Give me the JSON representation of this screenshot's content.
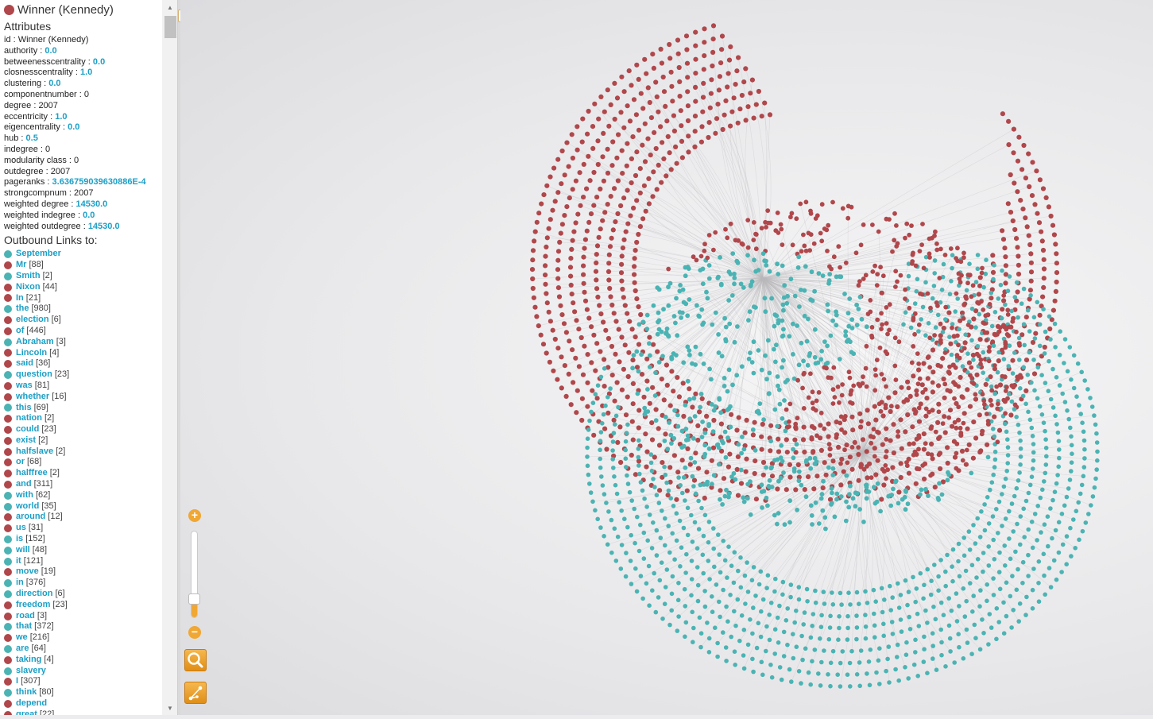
{
  "node": {
    "title": "Winner (Kennedy)",
    "color": "#b0474b"
  },
  "attributes_heading": "Attributes",
  "attributes": [
    {
      "key": "id",
      "value": "Winner (Kennedy)",
      "numeric": false
    },
    {
      "key": "authority",
      "value": "0.0",
      "numeric": true
    },
    {
      "key": "betweenesscentrality",
      "value": "0.0",
      "numeric": true
    },
    {
      "key": "closnesscentrality",
      "value": "1.0",
      "numeric": true
    },
    {
      "key": "clustering",
      "value": "0.0",
      "numeric": true
    },
    {
      "key": "componentnumber",
      "value": "0",
      "numeric": false
    },
    {
      "key": "degree",
      "value": "2007",
      "numeric": false
    },
    {
      "key": "eccentricity",
      "value": "1.0",
      "numeric": true
    },
    {
      "key": "eigencentrality",
      "value": "0.0",
      "numeric": true
    },
    {
      "key": "hub",
      "value": "0.5",
      "numeric": true
    },
    {
      "key": "indegree",
      "value": "0",
      "numeric": false
    },
    {
      "key": "modularity class",
      "value": "0",
      "numeric": false
    },
    {
      "key": "outdegree",
      "value": "2007",
      "numeric": false
    },
    {
      "key": "pageranks",
      "value": "3.636759039630886E-4",
      "numeric": true
    },
    {
      "key": "strongcompnum",
      "value": "2007",
      "numeric": false
    },
    {
      "key": "weighted degree",
      "value": "14530.0",
      "numeric": true
    },
    {
      "key": "weighted indegree",
      "value": "0.0",
      "numeric": true
    },
    {
      "key": "weighted outdegree",
      "value": "14530.0",
      "numeric": true
    }
  ],
  "outbound_heading": "Outbound Links to:",
  "colors": {
    "red": "#b0474b",
    "teal": "#4bb3b3",
    "link": "#1c9fc6",
    "accent": "#f0a733"
  },
  "outbound_links": [
    {
      "name": "September",
      "count": "",
      "color": "teal"
    },
    {
      "name": "Mr",
      "count": "[88]",
      "color": "red"
    },
    {
      "name": "Smith",
      "count": "[2]",
      "color": "teal"
    },
    {
      "name": "Nixon",
      "count": "[44]",
      "color": "red"
    },
    {
      "name": "In",
      "count": "[21]",
      "color": "red"
    },
    {
      "name": "the",
      "count": "[980]",
      "color": "teal"
    },
    {
      "name": "election",
      "count": "[6]",
      "color": "red"
    },
    {
      "name": "of",
      "count": "[446]",
      "color": "red"
    },
    {
      "name": "Abraham",
      "count": "[3]",
      "color": "teal"
    },
    {
      "name": "Lincoln",
      "count": "[4]",
      "color": "red"
    },
    {
      "name": "said",
      "count": "[36]",
      "color": "red"
    },
    {
      "name": "question",
      "count": "[23]",
      "color": "teal"
    },
    {
      "name": "was",
      "count": "[81]",
      "color": "red"
    },
    {
      "name": "whether",
      "count": "[16]",
      "color": "red"
    },
    {
      "name": "this",
      "count": "[69]",
      "color": "teal"
    },
    {
      "name": "nation",
      "count": "[2]",
      "color": "red"
    },
    {
      "name": "could",
      "count": "[23]",
      "color": "red"
    },
    {
      "name": "exist",
      "count": "[2]",
      "color": "red"
    },
    {
      "name": "halfslave",
      "count": "[2]",
      "color": "red"
    },
    {
      "name": "or",
      "count": "[68]",
      "color": "red"
    },
    {
      "name": "halffree",
      "count": "[2]",
      "color": "red"
    },
    {
      "name": "and",
      "count": "[311]",
      "color": "red"
    },
    {
      "name": "with",
      "count": "[62]",
      "color": "teal"
    },
    {
      "name": "world",
      "count": "[35]",
      "color": "teal"
    },
    {
      "name": "around",
      "count": "[12]",
      "color": "red"
    },
    {
      "name": "us",
      "count": "[31]",
      "color": "red"
    },
    {
      "name": "is",
      "count": "[152]",
      "color": "teal"
    },
    {
      "name": "will",
      "count": "[48]",
      "color": "teal"
    },
    {
      "name": "it",
      "count": "[121]",
      "color": "teal"
    },
    {
      "name": "move",
      "count": "[19]",
      "color": "red"
    },
    {
      "name": "in",
      "count": "[376]",
      "color": "teal"
    },
    {
      "name": "direction",
      "count": "[6]",
      "color": "teal"
    },
    {
      "name": "freedom",
      "count": "[23]",
      "color": "red"
    },
    {
      "name": "road",
      "count": "[3]",
      "color": "red"
    },
    {
      "name": "that",
      "count": "[372]",
      "color": "teal"
    },
    {
      "name": "we",
      "count": "[216]",
      "color": "red"
    },
    {
      "name": "are",
      "count": "[64]",
      "color": "teal"
    },
    {
      "name": "taking",
      "count": "[4]",
      "color": "red"
    },
    {
      "name": "slavery",
      "count": "",
      "color": "teal"
    },
    {
      "name": "I",
      "count": "[307]",
      "color": "red"
    },
    {
      "name": "think",
      "count": "[80]",
      "color": "teal"
    },
    {
      "name": "depend",
      "count": "",
      "color": "red"
    },
    {
      "name": "great",
      "count": "[22]",
      "color": "red"
    }
  ],
  "controls": {
    "collapse_label": "«",
    "zoom_in_label": "+",
    "zoom_out_label": "−",
    "zoom_level": 0.22,
    "search_icon": "magnifier-icon",
    "layout_icon": "graph-layout-icon"
  }
}
